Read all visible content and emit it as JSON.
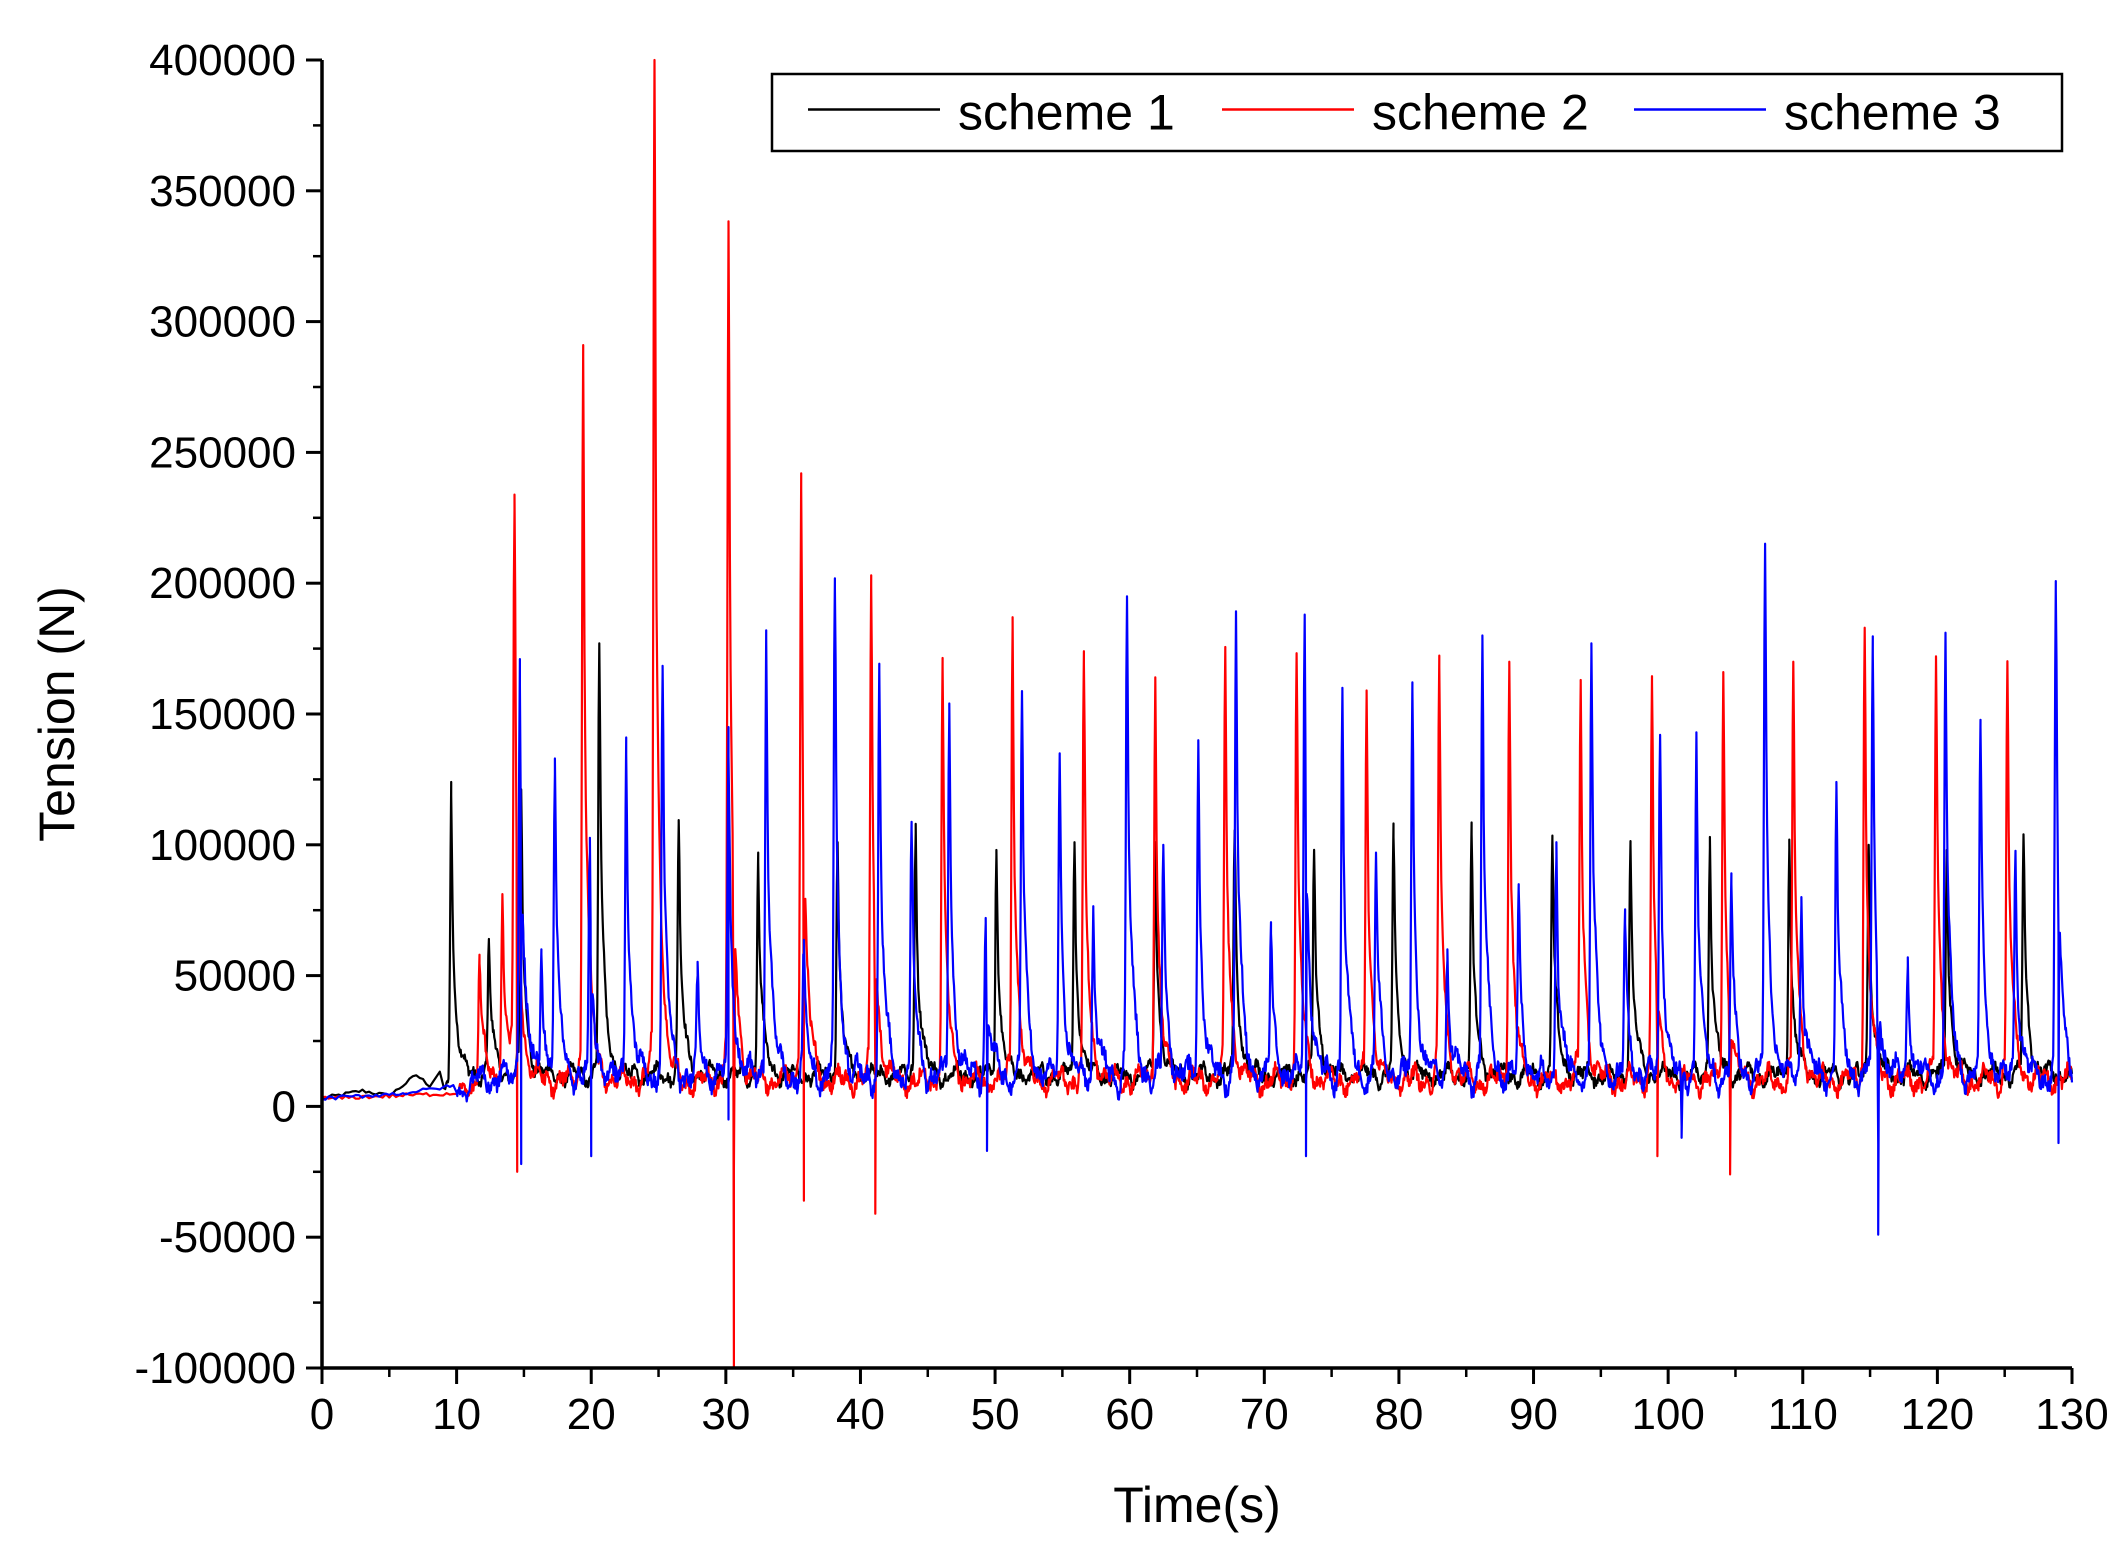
{
  "chart_data": {
    "type": "line",
    "title": "",
    "xlabel": "Time(s)",
    "ylabel": "Tension (N)",
    "xlim": [
      0,
      130
    ],
    "ylim": [
      -100000,
      400000
    ],
    "xticks": [
      0,
      10,
      20,
      30,
      40,
      50,
      60,
      70,
      80,
      90,
      100,
      110,
      120,
      130
    ],
    "yticks": [
      -100000,
      -50000,
      0,
      50000,
      100000,
      150000,
      200000,
      250000,
      300000,
      350000,
      400000
    ],
    "grid": false,
    "legend_position": "top-right",
    "series": [
      {
        "name": "scheme 1",
        "color": "#000000",
        "baseline": 12000,
        "noise": 4000,
        "startup": [
          [
            0,
            3000
          ],
          [
            3,
            6000
          ],
          [
            5,
            4000
          ],
          [
            7,
            12000
          ],
          [
            8,
            8000
          ],
          [
            9,
            15000
          ]
        ],
        "peaks": [
          [
            9.6,
            124000
          ],
          [
            12.4,
            64000
          ],
          [
            14.8,
            120000
          ],
          [
            20.6,
            177000
          ],
          [
            26.5,
            108000
          ],
          [
            32.4,
            97000
          ],
          [
            38.3,
            101000
          ],
          [
            44.1,
            108000
          ],
          [
            50.1,
            98000
          ],
          [
            55.9,
            101000
          ],
          [
            61.9,
            101000
          ],
          [
            67.8,
            104000
          ],
          [
            73.7,
            98000
          ],
          [
            79.6,
            103000
          ],
          [
            85.4,
            104000
          ],
          [
            91.4,
            102000
          ],
          [
            97.2,
            100000
          ],
          [
            103.1,
            103000
          ],
          [
            109.0,
            102000
          ],
          [
            114.9,
            100000
          ],
          [
            120.7,
            98000
          ],
          [
            126.4,
            104000
          ]
        ]
      },
      {
        "name": "scheme 2",
        "color": "#ff0000",
        "baseline": 10000,
        "noise": 5000,
        "startup": [
          [
            0,
            3000
          ],
          [
            5,
            4000
          ],
          [
            10,
            5000
          ]
        ],
        "peaks": [
          [
            11.7,
            58000
          ],
          [
            13.4,
            81000
          ],
          [
            14.3,
            228000
          ],
          [
            19.4,
            291000
          ],
          [
            24.7,
            400000
          ],
          [
            30.2,
            335000
          ],
          [
            35.6,
            242000
          ],
          [
            40.8,
            199000
          ],
          [
            46.1,
            168000
          ],
          [
            51.3,
            187000
          ],
          [
            56.6,
            169000
          ],
          [
            61.9,
            164000
          ],
          [
            67.1,
            174000
          ],
          [
            72.4,
            173000
          ],
          [
            77.6,
            159000
          ],
          [
            83.0,
            168000
          ],
          [
            88.2,
            170000
          ],
          [
            93.5,
            163000
          ],
          [
            98.8,
            162000
          ],
          [
            104.1,
            166000
          ],
          [
            109.3,
            170000
          ],
          [
            114.6,
            183000
          ],
          [
            119.9,
            172000
          ],
          [
            125.2,
            170000
          ]
        ],
        "dips": [
          [
            14.5,
            -25000
          ],
          [
            30.6,
            -100000
          ],
          [
            35.8,
            -36000
          ],
          [
            41.1,
            -41000
          ],
          [
            99.2,
            -19000
          ],
          [
            104.6,
            -26000
          ]
        ]
      },
      {
        "name": "scheme 3",
        "color": "#0000ff",
        "baseline": 11000,
        "noise": 6000,
        "startup": [
          [
            0,
            3000
          ],
          [
            6,
            5000
          ],
          [
            10,
            8000
          ]
        ],
        "peaks": [
          [
            14.7,
            171000
          ],
          [
            16.3,
            60000
          ],
          [
            17.3,
            127000
          ],
          [
            19.9,
            97000
          ],
          [
            22.6,
            141000
          ],
          [
            25.3,
            166000
          ],
          [
            27.9,
            50000
          ],
          [
            30.2,
            145000
          ],
          [
            33.0,
            182000
          ],
          [
            35.8,
            58000
          ],
          [
            38.1,
            198000
          ],
          [
            41.4,
            167000
          ],
          [
            43.8,
            106000
          ],
          [
            46.6,
            154000
          ],
          [
            49.3,
            72000
          ],
          [
            52.0,
            158000
          ],
          [
            54.8,
            134000
          ],
          [
            57.3,
            75000
          ],
          [
            59.8,
            195000
          ],
          [
            62.5,
            100000
          ],
          [
            65.1,
            140000
          ],
          [
            67.9,
            189000
          ],
          [
            70.5,
            66000
          ],
          [
            73.0,
            188000
          ],
          [
            75.8,
            160000
          ],
          [
            78.3,
            97000
          ],
          [
            81.0,
            159000
          ],
          [
            83.6,
            60000
          ],
          [
            86.2,
            180000
          ],
          [
            88.9,
            83000
          ],
          [
            91.7,
            101000
          ],
          [
            94.3,
            177000
          ],
          [
            96.8,
            70000
          ],
          [
            99.4,
            142000
          ],
          [
            102.1,
            143000
          ],
          [
            104.7,
            85000
          ],
          [
            107.2,
            214000
          ],
          [
            109.9,
            80000
          ],
          [
            112.5,
            124000
          ],
          [
            115.2,
            173000
          ],
          [
            117.8,
            57000
          ],
          [
            120.6,
            181000
          ],
          [
            123.2,
            145000
          ],
          [
            125.8,
            97000
          ],
          [
            128.8,
            197000
          ]
        ],
        "dips": [
          [
            14.8,
            -22000
          ],
          [
            20.0,
            -19000
          ],
          [
            30.2,
            -5000
          ],
          [
            49.4,
            -17000
          ],
          [
            73.1,
            -19000
          ],
          [
            101.0,
            -12000
          ],
          [
            115.6,
            -49000
          ],
          [
            129.0,
            -14000
          ]
        ]
      }
    ]
  }
}
